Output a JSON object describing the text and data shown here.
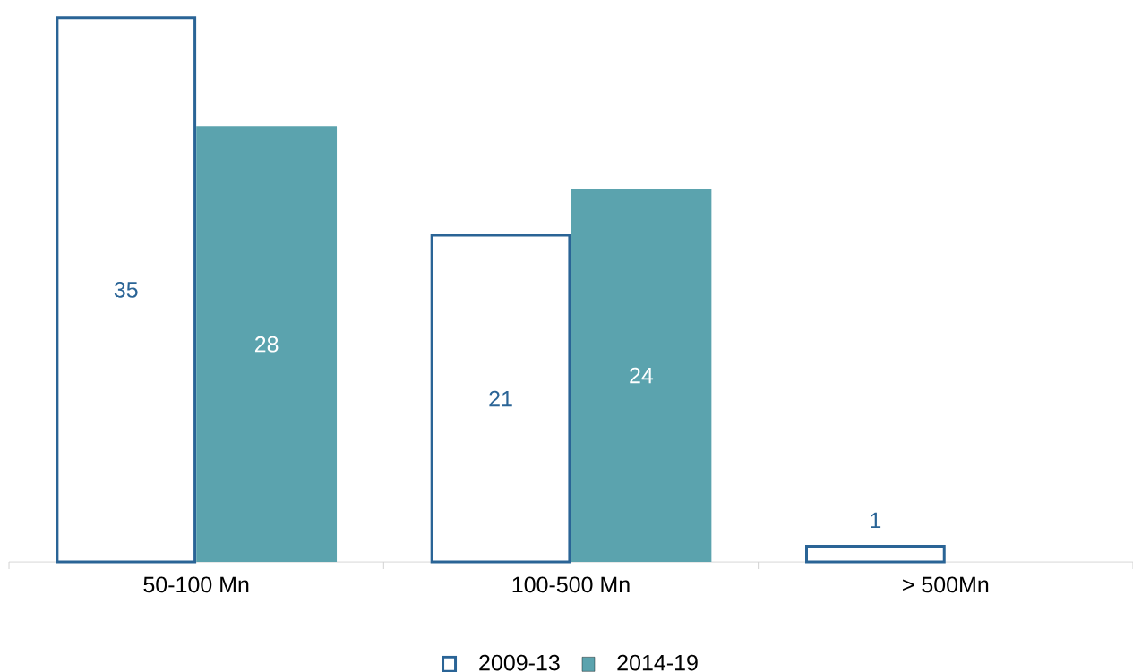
{
  "chart_data": {
    "type": "bar",
    "categories": [
      "50-100 Mn",
      "100-500 Mn",
      "> 500Mn"
    ],
    "series": [
      {
        "name": "2009-13",
        "color": "#2a6496",
        "values": [
          35,
          21,
          1
        ]
      },
      {
        "name": "2014-19",
        "color": "#5ba3ae",
        "values": [
          28,
          24,
          null
        ]
      }
    ],
    "data_labels": true,
    "legend": "bottom"
  }
}
